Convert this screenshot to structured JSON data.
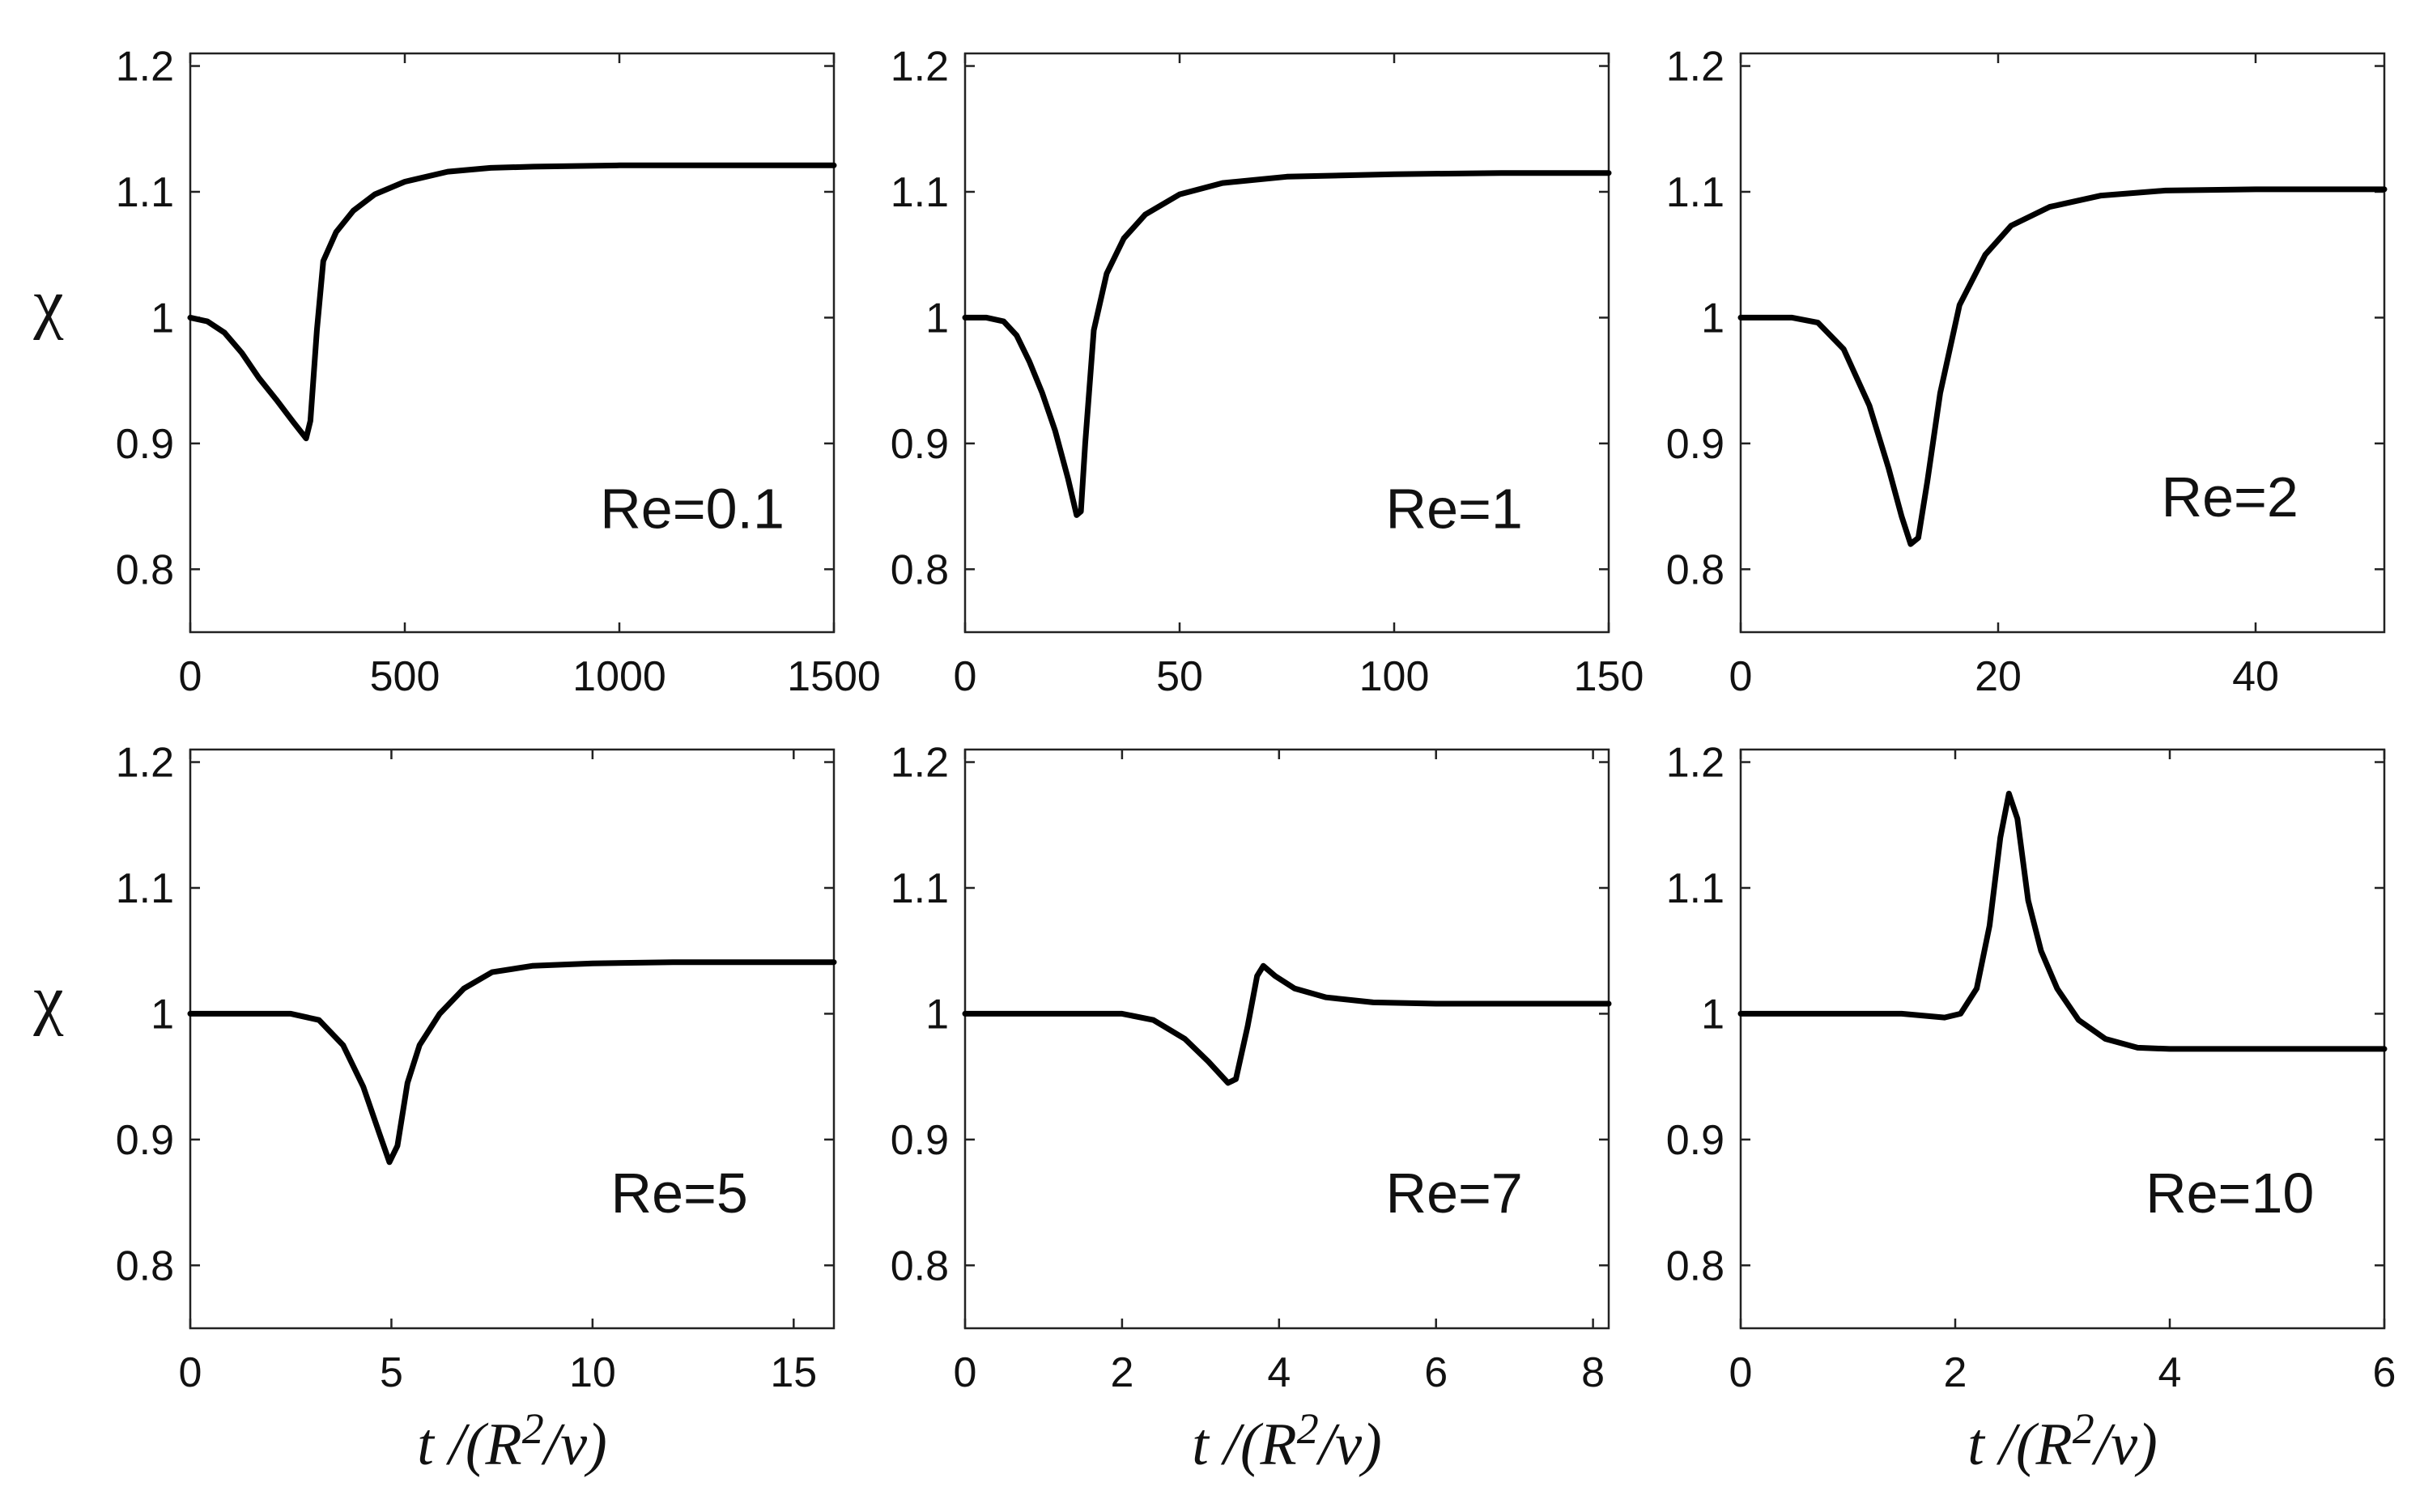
{
  "figure": {
    "rows": 2,
    "cols": 3,
    "shared_xlabel": "t /(R²/ν)",
    "shared_ylabel": "χ"
  },
  "chart_data": [
    {
      "type": "line",
      "panel": "top-left",
      "annotation": "Re=0.1",
      "xlabel": "",
      "ylabel": "χ",
      "xlim": [
        0,
        1500
      ],
      "ylim": [
        0.75,
        1.21
      ],
      "xticks": [
        0,
        500,
        1000,
        1500
      ],
      "xtick_labels": [
        "0",
        "500",
        "1000",
        "1500"
      ],
      "yticks": [
        0.8,
        0.9,
        1.0,
        1.1,
        1.2
      ],
      "ytick_labels": [
        "0.8",
        "0.9",
        "1",
        "1.1",
        "1.2"
      ],
      "series": [
        {
          "name": "Re=0.1",
          "x": [
            0,
            40,
            80,
            120,
            160,
            200,
            240,
            270,
            280,
            295,
            310,
            340,
            380,
            430,
            500,
            600,
            700,
            800,
            1000,
            1200,
            1500
          ],
          "y": [
            1.0,
            0.997,
            0.988,
            0.972,
            0.952,
            0.935,
            0.917,
            0.904,
            0.918,
            0.99,
            1.045,
            1.068,
            1.085,
            1.098,
            1.108,
            1.116,
            1.119,
            1.12,
            1.121,
            1.121,
            1.121
          ]
        }
      ]
    },
    {
      "type": "line",
      "panel": "top-middle",
      "annotation": "Re=1",
      "xlabel": "",
      "ylabel": "",
      "xlim": [
        0,
        150
      ],
      "ylim": [
        0.75,
        1.21
      ],
      "xticks": [
        0,
        50,
        100,
        150
      ],
      "xtick_labels": [
        "0",
        "50",
        "100",
        "150"
      ],
      "yticks": [
        0.8,
        0.9,
        1.0,
        1.1,
        1.2
      ],
      "ytick_labels": [
        "0.8",
        "0.9",
        "1",
        "1.1",
        "1.2"
      ],
      "series": [
        {
          "name": "Re=1",
          "x": [
            0,
            5,
            9,
            12,
            15,
            18,
            21,
            24,
            26,
            27,
            28,
            30,
            33,
            37,
            42,
            50,
            60,
            75,
            100,
            125,
            150
          ],
          "y": [
            1.0,
            1.0,
            0.997,
            0.986,
            0.965,
            0.94,
            0.91,
            0.872,
            0.843,
            0.846,
            0.9,
            0.99,
            1.035,
            1.063,
            1.082,
            1.098,
            1.107,
            1.112,
            1.114,
            1.115,
            1.115
          ]
        }
      ]
    },
    {
      "type": "line",
      "panel": "top-right",
      "annotation": "Re=2",
      "xlabel": "",
      "ylabel": "",
      "xlim": [
        0,
        50
      ],
      "ylim": [
        0.75,
        1.21
      ],
      "xticks": [
        0,
        20,
        40
      ],
      "xtick_labels": [
        "0",
        "20",
        "40"
      ],
      "yticks": [
        0.8,
        0.9,
        1.0,
        1.1,
        1.2
      ],
      "ytick_labels": [
        "0.8",
        "0.9",
        "1",
        "1.1",
        "1.2"
      ],
      "series": [
        {
          "name": "Re=2",
          "x": [
            0,
            4,
            6,
            8,
            10,
            11.5,
            12.5,
            13.2,
            13.8,
            14.5,
            15.5,
            17,
            19,
            21,
            24,
            28,
            33,
            40,
            50
          ],
          "y": [
            1.0,
            1.0,
            0.996,
            0.975,
            0.93,
            0.88,
            0.842,
            0.82,
            0.825,
            0.87,
            0.94,
            1.01,
            1.05,
            1.073,
            1.088,
            1.097,
            1.101,
            1.102,
            1.102
          ]
        }
      ]
    },
    {
      "type": "line",
      "panel": "bottom-left",
      "annotation": "Re=5",
      "xlabel": "t /(R²/ν)",
      "ylabel": "χ",
      "xlim": [
        0,
        16
      ],
      "ylim": [
        0.75,
        1.21
      ],
      "xticks": [
        0,
        5,
        10,
        15
      ],
      "xtick_labels": [
        "0",
        "5",
        "10",
        "15"
      ],
      "yticks": [
        0.8,
        0.9,
        1.0,
        1.1,
        1.2
      ],
      "ytick_labels": [
        "0.8",
        "0.9",
        "1",
        "1.1",
        "1.2"
      ],
      "series": [
        {
          "name": "Re=5",
          "x": [
            0,
            2.5,
            3.2,
            3.8,
            4.3,
            4.7,
            4.95,
            5.15,
            5.4,
            5.7,
            6.2,
            6.8,
            7.5,
            8.5,
            10,
            12,
            16
          ],
          "y": [
            1.0,
            1.0,
            0.995,
            0.975,
            0.942,
            0.905,
            0.882,
            0.895,
            0.945,
            0.975,
            1.0,
            1.02,
            1.033,
            1.038,
            1.04,
            1.041,
            1.041
          ]
        }
      ]
    },
    {
      "type": "line",
      "panel": "bottom-middle",
      "annotation": "Re=7",
      "xlabel": "t /(R²/ν)",
      "ylabel": "",
      "xlim": [
        0,
        8.2
      ],
      "ylim": [
        0.75,
        1.21
      ],
      "xticks": [
        0,
        2,
        4,
        6,
        8
      ],
      "xtick_labels": [
        "0",
        "2",
        "4",
        "6",
        "8"
      ],
      "yticks": [
        0.8,
        0.9,
        1.0,
        1.1,
        1.2
      ],
      "ytick_labels": [
        "0.8",
        "0.9",
        "1",
        "1.1",
        "1.2"
      ],
      "series": [
        {
          "name": "Re=7",
          "x": [
            0,
            2.0,
            2.4,
            2.8,
            3.1,
            3.35,
            3.45,
            3.6,
            3.72,
            3.8,
            3.95,
            4.2,
            4.6,
            5.2,
            6,
            7,
            8.2
          ],
          "y": [
            1.0,
            1.0,
            0.995,
            0.98,
            0.962,
            0.945,
            0.948,
            0.99,
            1.03,
            1.038,
            1.03,
            1.02,
            1.013,
            1.009,
            1.008,
            1.008,
            1.008
          ]
        }
      ]
    },
    {
      "type": "line",
      "panel": "bottom-right",
      "annotation": "Re=10",
      "xlabel": "t /(R²/ν)",
      "ylabel": "",
      "xlim": [
        0,
        6
      ],
      "ylim": [
        0.75,
        1.21
      ],
      "xticks": [
        0,
        2,
        4,
        6
      ],
      "xtick_labels": [
        "0",
        "2",
        "4",
        "6"
      ],
      "yticks": [
        0.8,
        0.9,
        1.0,
        1.1,
        1.2
      ],
      "ytick_labels": [
        "0.8",
        "0.9",
        "1",
        "1.1",
        "1.2"
      ],
      "series": [
        {
          "name": "Re=10",
          "x": [
            0,
            1.5,
            1.9,
            2.05,
            2.2,
            2.32,
            2.42,
            2.5,
            2.58,
            2.68,
            2.8,
            2.95,
            3.15,
            3.4,
            3.7,
            4,
            5,
            6
          ],
          "y": [
            1.0,
            1.0,
            0.997,
            1.0,
            1.02,
            1.07,
            1.14,
            1.175,
            1.155,
            1.09,
            1.05,
            1.02,
            0.995,
            0.98,
            0.973,
            0.972,
            0.972,
            0.972
          ]
        }
      ]
    }
  ]
}
